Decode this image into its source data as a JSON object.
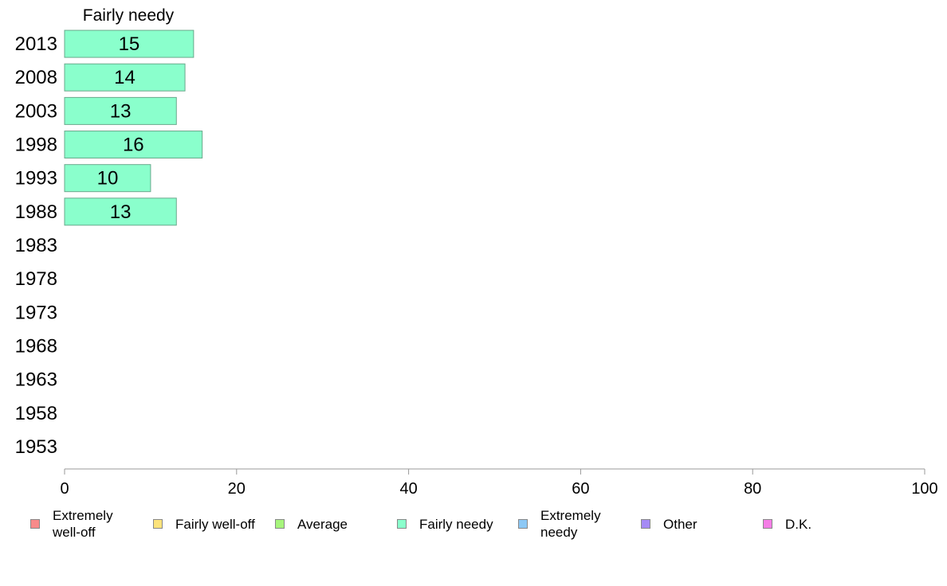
{
  "chart_data": {
    "type": "bar",
    "orientation": "horizontal",
    "title": "Fairly needy",
    "categories": [
      "2013",
      "2008",
      "2003",
      "1998",
      "1993",
      "1988",
      "1983",
      "1978",
      "1973",
      "1968",
      "1963",
      "1958",
      "1953"
    ],
    "series": [
      {
        "name": "Fairly needy",
        "values": [
          15,
          14,
          13,
          16,
          10,
          13,
          null,
          null,
          null,
          null,
          null,
          null,
          null
        ],
        "color": "#8affcc"
      }
    ],
    "data_labels": [
      "15",
      "14",
      "13",
      "16",
      "10",
      "13",
      "",
      "",
      "",
      "",
      "",
      "",
      ""
    ],
    "xlim": [
      0,
      100
    ],
    "xticks": [
      0,
      20,
      40,
      60,
      80,
      100
    ],
    "xlabel": "",
    "ylabel": "",
    "grid": false,
    "legend_position": "bottom",
    "legend": [
      {
        "label": "Extremely well-off",
        "color": "#f88a8a"
      },
      {
        "label": "Fairly well-off",
        "color": "#fce37c"
      },
      {
        "label": "Average",
        "color": "#a6f57c"
      },
      {
        "label": "Fairly needy",
        "color": "#8affcc"
      },
      {
        "label": "Extremely needy",
        "color": "#8cc8f5"
      },
      {
        "label": "Other",
        "color": "#a58af5"
      },
      {
        "label": "D.K.",
        "color": "#f57ee6"
      }
    ]
  }
}
